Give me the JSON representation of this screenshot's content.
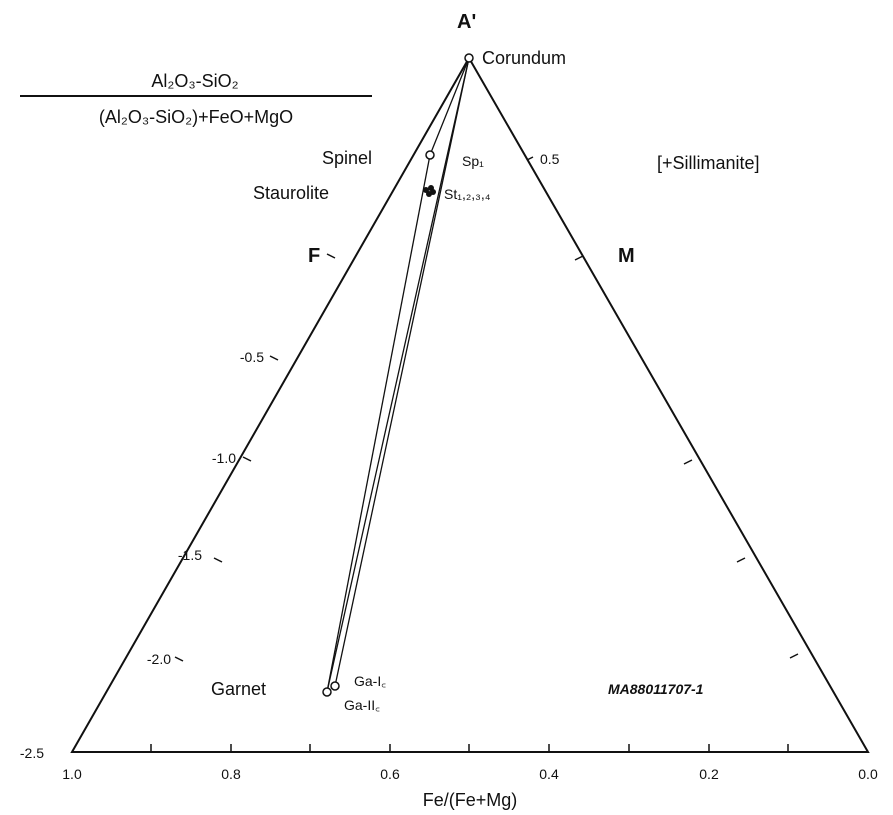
{
  "diagram": {
    "type": "A'FM ternary diagram",
    "apex_label": "A'",
    "left_edge_label": "F",
    "right_edge_label": "M",
    "top_formula": {
      "numerator": "Al₂O₃-SiO₂",
      "denominator": "(Al₂O₃-SiO₂)+FeO+MgO"
    },
    "assemblage_note": "[+Sillimanite]",
    "sample_id": "MA88011707-1",
    "x_axis_label": "Fe/(Fe+Mg)",
    "x_ticks": [
      "1.0",
      "0.8",
      "0.6",
      "0.4",
      "0.2",
      "0.0"
    ],
    "left_axis_ticks": [
      "-0.5",
      "-1.0",
      "-1.5",
      "-2.0",
      "-2.5"
    ],
    "right_edge_tick": "0.5",
    "minerals": {
      "corundum": "Corundum",
      "spinel": "Spinel",
      "staurolite": "Staurolite",
      "garnet": "Garnet"
    },
    "analysis_labels": {
      "spinel": "Sp₁",
      "staurolite": "St₁,₂,₃,₄",
      "garnet_1": "Ga-I꜀",
      "garnet_2": "Ga-II꜀"
    }
  },
  "chart_data": {
    "type": "scatter",
    "title": "",
    "xlabel": "Fe/(Fe+Mg)",
    "ylabel": "(Al2O3-SiO2)/((Al2O3-SiO2)+FeO+MgO)",
    "xlim": [
      1.0,
      0.0
    ],
    "ylim": [
      -2.5,
      1.0
    ],
    "points": [
      {
        "name": "Corundum",
        "x": 0.5,
        "y": 1.0
      },
      {
        "name": "Sp1",
        "x": 0.55,
        "y": 0.55
      },
      {
        "name": "St1,2,3,4",
        "x": 0.55,
        "y": 0.47
      },
      {
        "name": "Ga-Ic",
        "x": 0.67,
        "y": -2.16
      },
      {
        "name": "Ga-IIc",
        "x": 0.68,
        "y": -2.18
      }
    ],
    "tie_lines": [
      [
        "Corundum",
        "Sp1"
      ],
      [
        "Corundum",
        "Ga-Ic"
      ],
      [
        "Sp1",
        "Ga-IIc"
      ],
      [
        "Corundum",
        "Ga-IIc"
      ]
    ]
  }
}
